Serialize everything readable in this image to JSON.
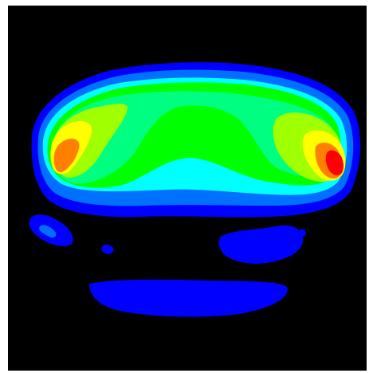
{
  "image": {
    "description_type": "contour-heatmap",
    "background_color": "#000000",
    "frame_color": "#ffffff",
    "palette": {
      "level1": "#0000ff",
      "level2": "#0070ff",
      "level3": "#00ffff",
      "level4": "#00ff80",
      "level5": "#00ff00",
      "level6": "#a0ff00",
      "level7": "#ffff00",
      "level8": "#ff8000",
      "level9": "#ff0000"
    }
  }
}
